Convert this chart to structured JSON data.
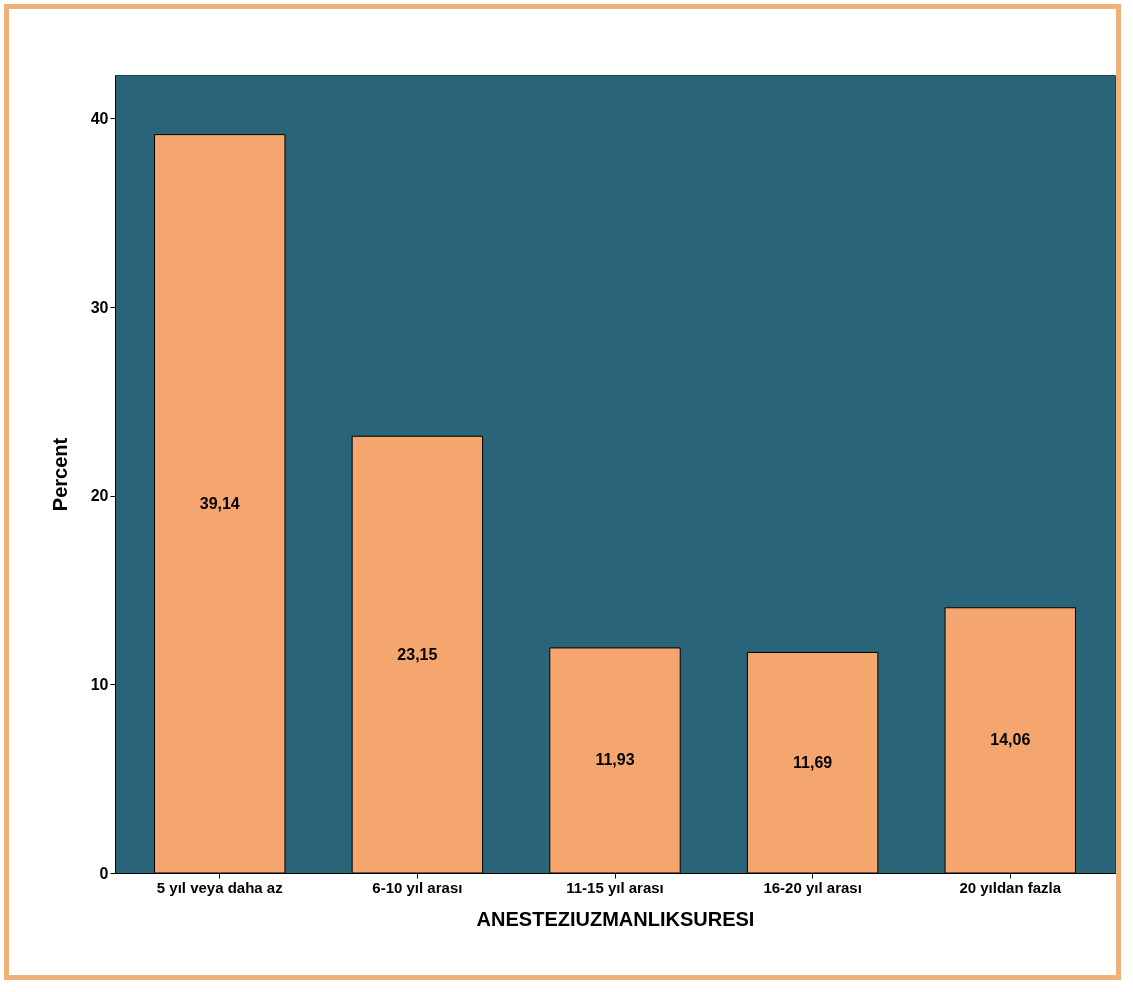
{
  "chart_data": {
    "type": "bar",
    "xlabel": "ANESTEZIUZMANLIKSURESI",
    "ylabel": "Percent",
    "categories": [
      "5 yıl veya daha az",
      "6-10 yıl arası",
      "11-15 yıl arası",
      "16-20 yıl arası",
      "20 yıldan fazla"
    ],
    "values": [
      39.14,
      23.15,
      11.93,
      11.69,
      14.06
    ],
    "value_labels": [
      "39,14",
      "23,15",
      "11,93",
      "11,69",
      "14,06"
    ],
    "color": "#f5a66e",
    "ylim": [
      0,
      42.3
    ],
    "yticks": [
      0,
      10,
      20,
      30,
      40
    ],
    "grid": false
  }
}
